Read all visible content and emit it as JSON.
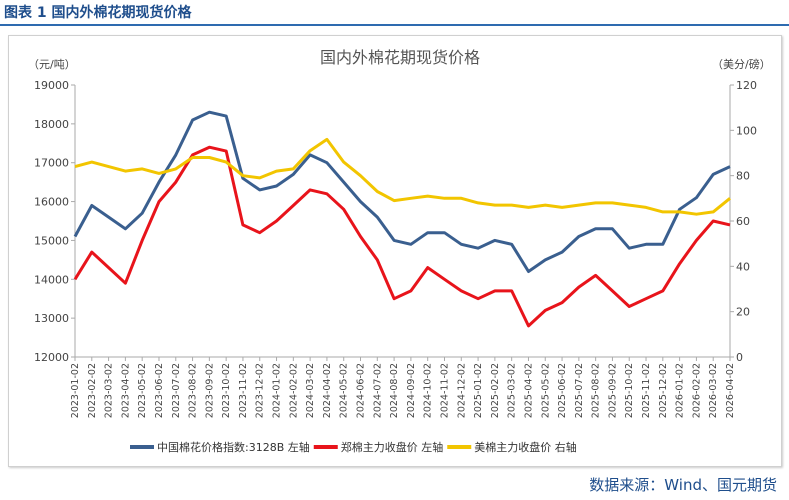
{
  "header": {
    "title": "图表 1 国内外棉花期现货价格"
  },
  "source": "数据来源：Wind、国元期货",
  "chart_data": {
    "type": "line",
    "title": "国内外棉花期现货价格",
    "ylabel_left": "（元/吨）",
    "ylabel_right": "（美分/磅）",
    "ylim_left": [
      12000,
      19000
    ],
    "ylim_right": [
      0,
      120
    ],
    "yticks_left": [
      "12000",
      "13000",
      "14000",
      "15000",
      "16000",
      "17000",
      "18000",
      "19000"
    ],
    "yticks_right": [
      "0",
      "20",
      "40",
      "60",
      "80",
      "100",
      "120"
    ],
    "x": [
      "2023-01-02",
      "2023-02-02",
      "2023-03-02",
      "2023-04-02",
      "2023-05-02",
      "2023-06-02",
      "2023-07-02",
      "2023-08-02",
      "2023-09-02",
      "2023-10-02",
      "2023-11-02",
      "2023-12-02",
      "2024-01-02",
      "2024-02-02",
      "2024-03-02",
      "2024-04-02",
      "2024-05-02",
      "2024-06-02",
      "2024-07-02",
      "2024-08-02",
      "2024-09-02",
      "2024-10-02",
      "2024-11-02",
      "2024-12-02",
      "2025-01-02",
      "2025-02-02",
      "2025-03-02",
      "2025-04-02",
      "2025-05-02",
      "2025-06-02",
      "2025-07-02",
      "2025-08-02",
      "2025-09-02",
      "2025-10-02",
      "2025-11-02",
      "2025-12-02",
      "2026-01-02",
      "2026-02-02",
      "2026-03-02",
      "2026-04-02"
    ],
    "legend_position": "bottom",
    "series": [
      {
        "name": "中国棉花价格指数:3128B  左轴",
        "axis": "left",
        "color": "#3a5f8f",
        "values": [
          15100,
          15900,
          15600,
          15300,
          15700,
          16500,
          17200,
          18100,
          18300,
          18200,
          16600,
          16300,
          16400,
          16700,
          17200,
          17000,
          16500,
          16000,
          15600,
          15000,
          14900,
          15200,
          15200,
          14900,
          14800,
          15000,
          14900,
          14200,
          14500,
          14700,
          15100,
          15300,
          15300,
          14800,
          14900,
          14900,
          15800,
          16100,
          16700,
          16900
        ]
      },
      {
        "name": "郑棉主力收盘价  左轴",
        "axis": "left",
        "color": "#e8141b",
        "values": [
          14000,
          14700,
          14300,
          13900,
          15000,
          16000,
          16500,
          17200,
          17400,
          17300,
          15400,
          15200,
          15500,
          15900,
          16300,
          16200,
          15800,
          15100,
          14500,
          13500,
          13700,
          14300,
          14000,
          13700,
          13500,
          13700,
          13700,
          12800,
          13200,
          13400,
          13800,
          14100,
          13700,
          13300,
          13500,
          13700,
          14400,
          15000,
          15500,
          15400
        ]
      },
      {
        "name": "美棉主力收盘价  右轴",
        "axis": "right",
        "color": "#f2c500",
        "values": [
          84,
          86,
          84,
          82,
          83,
          81,
          83,
          88,
          88,
          86,
          80,
          79,
          82,
          83,
          91,
          96,
          86,
          80,
          73,
          69,
          70,
          71,
          70,
          70,
          68,
          67,
          67,
          66,
          67,
          66,
          67,
          68,
          68,
          67,
          66,
          64,
          64,
          63,
          64,
          70
        ]
      }
    ]
  }
}
